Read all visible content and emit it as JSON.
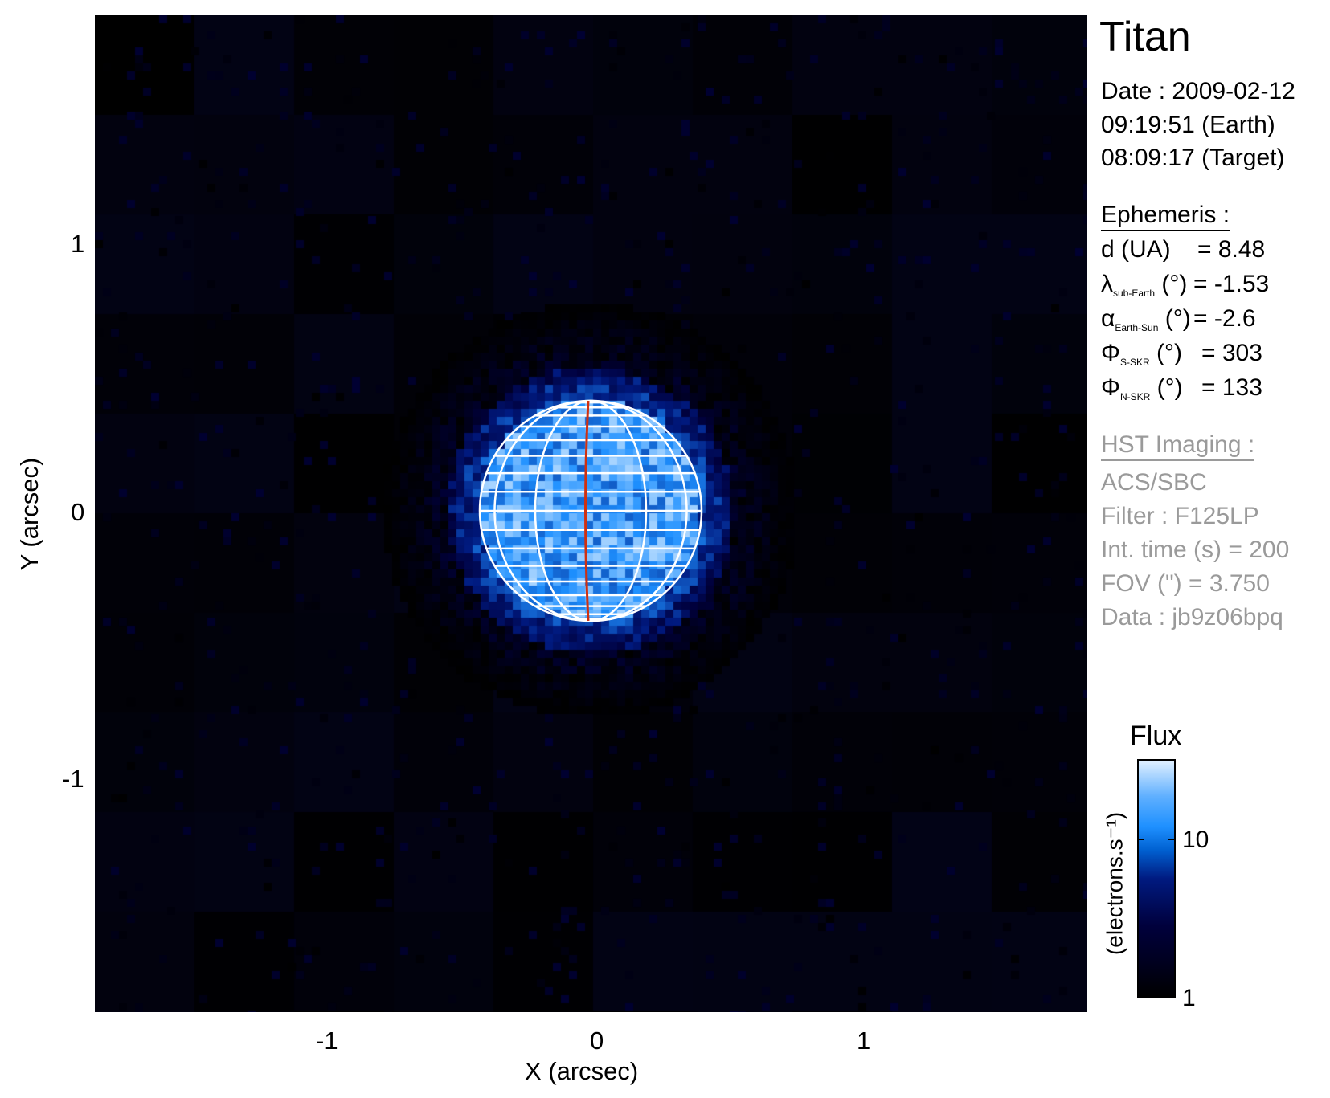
{
  "title": "Titan",
  "date_lines": [
    "Date : 2009-02-12",
    "09:19:51 (Earth)",
    "08:09:17 (Target)"
  ],
  "ephemeris": {
    "heading": "Ephemeris :",
    "rows": [
      {
        "symbol": "d (UA)",
        "sub": "",
        "unit": "",
        "value": "= 8.48"
      },
      {
        "symbol": "λ",
        "sub": "sub-Earth",
        "unit": "(°)",
        "value": "= -1.53"
      },
      {
        "symbol": "α",
        "sub": "Earth-Sun",
        "unit": "(°)",
        "value": "= -2.6"
      },
      {
        "symbol": "Φ",
        "sub": "S-SKR",
        "unit": "(°)",
        "value": "= 303"
      },
      {
        "symbol": "Φ",
        "sub": "N-SKR",
        "unit": "(°)",
        "value": "= 133"
      }
    ]
  },
  "imaging": {
    "heading": "HST Imaging :",
    "lines": [
      "ACS/SBC",
      "Filter : F125LP",
      "Int. time (s) = 200",
      "FOV (\") = 3.750",
      "Data : jb9z06bpq"
    ]
  },
  "chart_data": {
    "type": "heatmap",
    "title": "Titan",
    "xlabel": "X (arcsec)",
    "ylabel": "Y (arcsec)",
    "xlim": [
      -1.87,
      1.87
    ],
    "ylim": [
      -1.87,
      1.87
    ],
    "xticks": [
      "-1",
      "0",
      "1"
    ],
    "yticks": [
      "1",
      "0",
      "-1"
    ],
    "xtick_values": [
      -1,
      0,
      1
    ],
    "ytick_values": [
      1,
      0,
      -1
    ],
    "disc_radius_arcsec": 0.41,
    "grid_color": "#ffffff",
    "central_meridian_color": "#d03010",
    "colorbar": {
      "title": "Flux",
      "label": "(electrons.s⁻¹)",
      "scale": "log",
      "range": [
        1,
        31.6
      ],
      "ticks": [
        "10",
        "1"
      ],
      "tick_values": [
        10,
        1
      ],
      "colormap": [
        "#000000",
        "#00003c",
        "#001a80",
        "#1e90ff",
        "#e0f0ff"
      ]
    }
  }
}
